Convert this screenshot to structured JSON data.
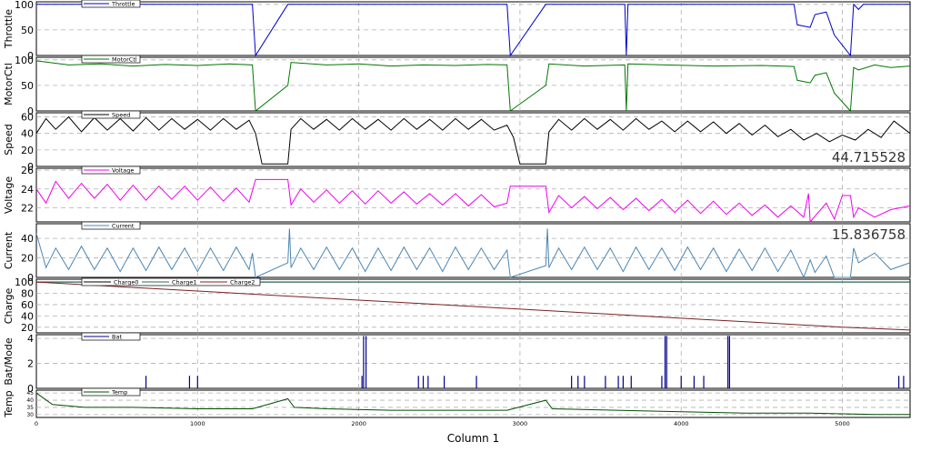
{
  "chart_data": {
    "type": "line",
    "xlabel": "Column 1",
    "xlim": [
      0,
      5420
    ],
    "x_ticks": [
      0,
      1000,
      2000,
      3000,
      4000,
      5000
    ],
    "panels": [
      {
        "key": "throttle",
        "ylabel": "Throttle",
        "ylim": [
          0,
          105
        ],
        "y_ticks": [
          0,
          50,
          100
        ],
        "legend": [
          "Throttle"
        ],
        "readout": "",
        "series": [
          {
            "name": "Throttle",
            "color": "#0000cc",
            "x": [
              0,
              1340,
              1360,
              1560,
              2920,
              2940,
              3160,
              3650,
              3660,
              3670,
              4700,
              4720,
              4800,
              4830,
              4900,
              4950,
              5050,
              5070,
              5100,
              5130,
              5200,
              5420
            ],
            "y": [
              100,
              100,
              0,
              100,
              100,
              0,
              100,
              100,
              0,
              100,
              100,
              60,
              55,
              80,
              85,
              40,
              0,
              100,
              90,
              100,
              100,
              100
            ]
          }
        ]
      },
      {
        "key": "motorctl",
        "ylabel": "MotorCtl",
        "ylim": [
          0,
          105
        ],
        "y_ticks": [
          0,
          50,
          100
        ],
        "legend": [
          "MotorCtl"
        ],
        "readout": "",
        "series": [
          {
            "name": "MotorCtl",
            "color": "#007700",
            "x": [
              0,
              200,
              400,
              600,
              800,
              1000,
              1200,
              1340,
              1360,
              1560,
              1580,
              1800,
              2000,
              2200,
              2400,
              2600,
              2800,
              2920,
              2940,
              3160,
              3180,
              3400,
              3650,
              3660,
              3670,
              3900,
              4200,
              4500,
              4700,
              4720,
              4800,
              4830,
              4900,
              4950,
              5050,
              5070,
              5100,
              5200,
              5300,
              5420
            ],
            "y": [
              98,
              90,
              92,
              88,
              91,
              89,
              92,
              90,
              0,
              50,
              95,
              90,
              92,
              88,
              90,
              89,
              91,
              90,
              0,
              50,
              92,
              88,
              90,
              0,
              92,
              90,
              88,
              89,
              87,
              60,
              55,
              70,
              75,
              35,
              0,
              85,
              80,
              90,
              85,
              88
            ]
          }
        ]
      },
      {
        "key": "speed",
        "ylabel": "Speed",
        "ylim": [
          0,
          65
        ],
        "y_ticks": [
          0,
          20,
          40,
          60
        ],
        "legend": [
          "Speed"
        ],
        "readout": "44.715528",
        "series": [
          {
            "name": "Speed",
            "color": "#000000",
            "x": [
              0,
              60,
              120,
              200,
              280,
              360,
              440,
              520,
              600,
              680,
              760,
              840,
              920,
              1000,
              1080,
              1160,
              1240,
              1320,
              1360,
              1400,
              1560,
              1580,
              1640,
              1720,
              1800,
              1880,
              1960,
              2040,
              2120,
              2200,
              2280,
              2360,
              2440,
              2520,
              2600,
              2680,
              2760,
              2840,
              2920,
              2960,
              3000,
              3160,
              3180,
              3240,
              3320,
              3400,
              3480,
              3560,
              3640,
              3720,
              3800,
              3880,
              3960,
              4040,
              4120,
              4200,
              4280,
              4360,
              4440,
              4520,
              4600,
              4680,
              4760,
              4840,
              4920,
              5000,
              5080,
              5160,
              5240,
              5320,
              5420
            ],
            "y": [
              40,
              58,
              45,
              60,
              42,
              59,
              44,
              58,
              43,
              59,
              44,
              58,
              45,
              57,
              44,
              58,
              45,
              56,
              40,
              3,
              3,
              45,
              58,
              45,
              57,
              44,
              58,
              45,
              57,
              44,
              58,
              45,
              57,
              44,
              58,
              45,
              57,
              44,
              50,
              35,
              3,
              3,
              42,
              57,
              44,
              58,
              45,
              57,
              44,
              58,
              45,
              55,
              42,
              55,
              42,
              54,
              40,
              52,
              38,
              50,
              36,
              45,
              32,
              40,
              30,
              38,
              32,
              45,
              35,
              55,
              40
            ]
          }
        ]
      },
      {
        "key": "voltage",
        "ylabel": "Voltage",
        "ylim": [
          20.5,
          26.2
        ],
        "y_ticks": [
          22,
          24,
          26
        ],
        "legend": [
          "Voltage"
        ],
        "readout": "",
        "series": [
          {
            "name": "Voltage",
            "color": "#ee00ee",
            "x": [
              0,
              60,
              120,
              200,
              280,
              360,
              440,
              520,
              600,
              680,
              760,
              840,
              920,
              1000,
              1080,
              1160,
              1240,
              1320,
              1340,
              1360,
              1560,
              1580,
              1640,
              1720,
              1800,
              1880,
              1960,
              2040,
              2120,
              2200,
              2280,
              2360,
              2440,
              2520,
              2600,
              2680,
              2760,
              2840,
              2920,
              2940,
              3160,
              3180,
              3240,
              3320,
              3400,
              3480,
              3560,
              3640,
              3720,
              3800,
              3880,
              3960,
              4040,
              4120,
              4200,
              4280,
              4360,
              4440,
              4520,
              4600,
              4680,
              4760,
              4790,
              4800,
              4900,
              4950,
              5000,
              5050,
              5070,
              5100,
              5200,
              5300,
              5420
            ],
            "y": [
              24,
              22.5,
              24.8,
              23,
              24.6,
              23,
              24.5,
              22.8,
              24.4,
              22.8,
              24.3,
              22.9,
              24.3,
              22.8,
              24.2,
              22.7,
              24.1,
              22.6,
              23.8,
              25,
              25,
              22.3,
              24,
              22.6,
              23.9,
              22.5,
              23.8,
              22.4,
              23.8,
              22.5,
              23.7,
              22.4,
              23.5,
              22.3,
              23.5,
              22.2,
              23.4,
              22.1,
              22.5,
              24.3,
              24.3,
              21.5,
              23.3,
              22,
              23.2,
              21.9,
              23.1,
              21.8,
              23,
              21.7,
              22.9,
              21.5,
              22.8,
              21.4,
              22.7,
              21.3,
              22.5,
              21.2,
              22.3,
              21,
              22.2,
              21,
              23.5,
              20.5,
              22.5,
              20.8,
              23.3,
              23.3,
              21,
              22,
              21,
              21.8,
              22.2
            ]
          }
        ]
      },
      {
        "key": "current",
        "ylabel": "Current",
        "ylim": [
          0,
          55
        ],
        "y_ticks": [
          0,
          20,
          40
        ],
        "legend": [
          "Current"
        ],
        "readout": "15.836758",
        "series": [
          {
            "name": "Current",
            "color": "#4a86b4",
            "x": [
              0,
              60,
              120,
              200,
              280,
              360,
              440,
              520,
              600,
              680,
              760,
              840,
              920,
              1000,
              1080,
              1160,
              1240,
              1320,
              1340,
              1360,
              1560,
              1570,
              1580,
              1640,
              1720,
              1800,
              1880,
              1960,
              2040,
              2120,
              2200,
              2280,
              2360,
              2440,
              2520,
              2600,
              2680,
              2760,
              2840,
              2920,
              2940,
              3160,
              3170,
              3180,
              3240,
              3320,
              3400,
              3480,
              3560,
              3640,
              3720,
              3800,
              3880,
              3960,
              4040,
              4120,
              4200,
              4280,
              4360,
              4440,
              4520,
              4600,
              4680,
              4760,
              4800,
              4830,
              4900,
              4950,
              5050,
              5070,
              5100,
              5200,
              5300,
              5420
            ],
            "y": [
              45,
              10,
              30,
              8,
              32,
              8,
              30,
              6,
              30,
              7,
              31,
              8,
              30,
              6,
              30,
              7,
              31,
              8,
              25,
              0,
              15,
              50,
              10,
              30,
              8,
              31,
              8,
              30,
              6,
              30,
              7,
              31,
              8,
              30,
              6,
              31,
              8,
              30,
              8,
              28,
              0,
              12,
              50,
              10,
              30,
              8,
              31,
              8,
              30,
              6,
              31,
              8,
              30,
              7,
              31,
              8,
              30,
              6,
              29,
              7,
              30,
              6,
              28,
              0,
              18,
              5,
              22,
              0,
              0,
              30,
              15,
              25,
              8,
              15
            ]
          }
        ]
      },
      {
        "key": "charge",
        "ylabel": "Charge",
        "ylim": [
          10,
          105
        ],
        "y_ticks": [
          20,
          40,
          60,
          80,
          100
        ],
        "legend": [
          "Charge0",
          "Charge1",
          "Charge2"
        ],
        "readout": "",
        "series": [
          {
            "name": "Charge0",
            "color": "#000000",
            "x": [
              0,
              5420
            ],
            "y": [
              100,
              100
            ]
          },
          {
            "name": "Charge1",
            "color": "#2a6a5a",
            "x": [
              0,
              5420
            ],
            "y": [
              100,
              100
            ]
          },
          {
            "name": "Charge2",
            "color": "#7a2020",
            "x": [
              0,
              500,
              1000,
              1500,
              2000,
              2500,
              3000,
              3500,
              4000,
              4500,
              5000,
              5420
            ],
            "y": [
              100,
              92,
              84,
              76,
              68,
              60,
              52,
              44,
              36,
              28,
              20,
              15
            ]
          }
        ]
      },
      {
        "key": "batmode",
        "ylabel": "Bat/Mode",
        "ylim": [
          0,
          4.3
        ],
        "y_ticks": [
          0,
          2,
          4
        ],
        "legend": [
          "Bat"
        ],
        "readout": "",
        "series": [
          {
            "name": "Bat",
            "color": "#00008b",
            "spikes": [
              [
                680,
                1
              ],
              [
                950,
                1
              ],
              [
                1000,
                1
              ],
              [
                2020,
                1
              ],
              [
                2030,
                4.2
              ],
              [
                2045,
                4.2
              ],
              [
                2370,
                1
              ],
              [
                2400,
                1
              ],
              [
                2430,
                1
              ],
              [
                2530,
                1
              ],
              [
                2730,
                1
              ],
              [
                3320,
                1
              ],
              [
                3360,
                1
              ],
              [
                3400,
                1
              ],
              [
                3530,
                1
              ],
              [
                3610,
                1
              ],
              [
                3640,
                1
              ],
              [
                3690,
                1
              ],
              [
                3880,
                1
              ],
              [
                3900,
                4.2
              ],
              [
                3910,
                4.2
              ],
              [
                4000,
                1
              ],
              [
                4080,
                1
              ],
              [
                4140,
                1
              ],
              [
                4290,
                4.2
              ],
              [
                4300,
                4.2
              ],
              [
                5350,
                1
              ],
              [
                5380,
                1
              ]
            ]
          }
        ]
      },
      {
        "key": "temp",
        "ylabel": "Temp",
        "ylim": [
          28,
          47
        ],
        "y_ticks": [
          30,
          35,
          40,
          45
        ],
        "legend": [
          "Temp"
        ],
        "readout": "",
        "series": [
          {
            "name": "Temp",
            "color": "#004d00",
            "x": [
              0,
              100,
              300,
              600,
              1000,
              1340,
              1560,
              1600,
              1800,
              2200,
              2600,
              2920,
              3160,
              3200,
              3600,
              4000,
              4400,
              4800,
              5200,
              5420
            ],
            "y": [
              45,
              37,
              35,
              35,
              34,
              34,
              41,
              35,
              34,
              33,
              33,
              33,
              40,
              34,
              33,
              32,
              31,
              31,
              30,
              30
            ]
          }
        ]
      }
    ]
  }
}
